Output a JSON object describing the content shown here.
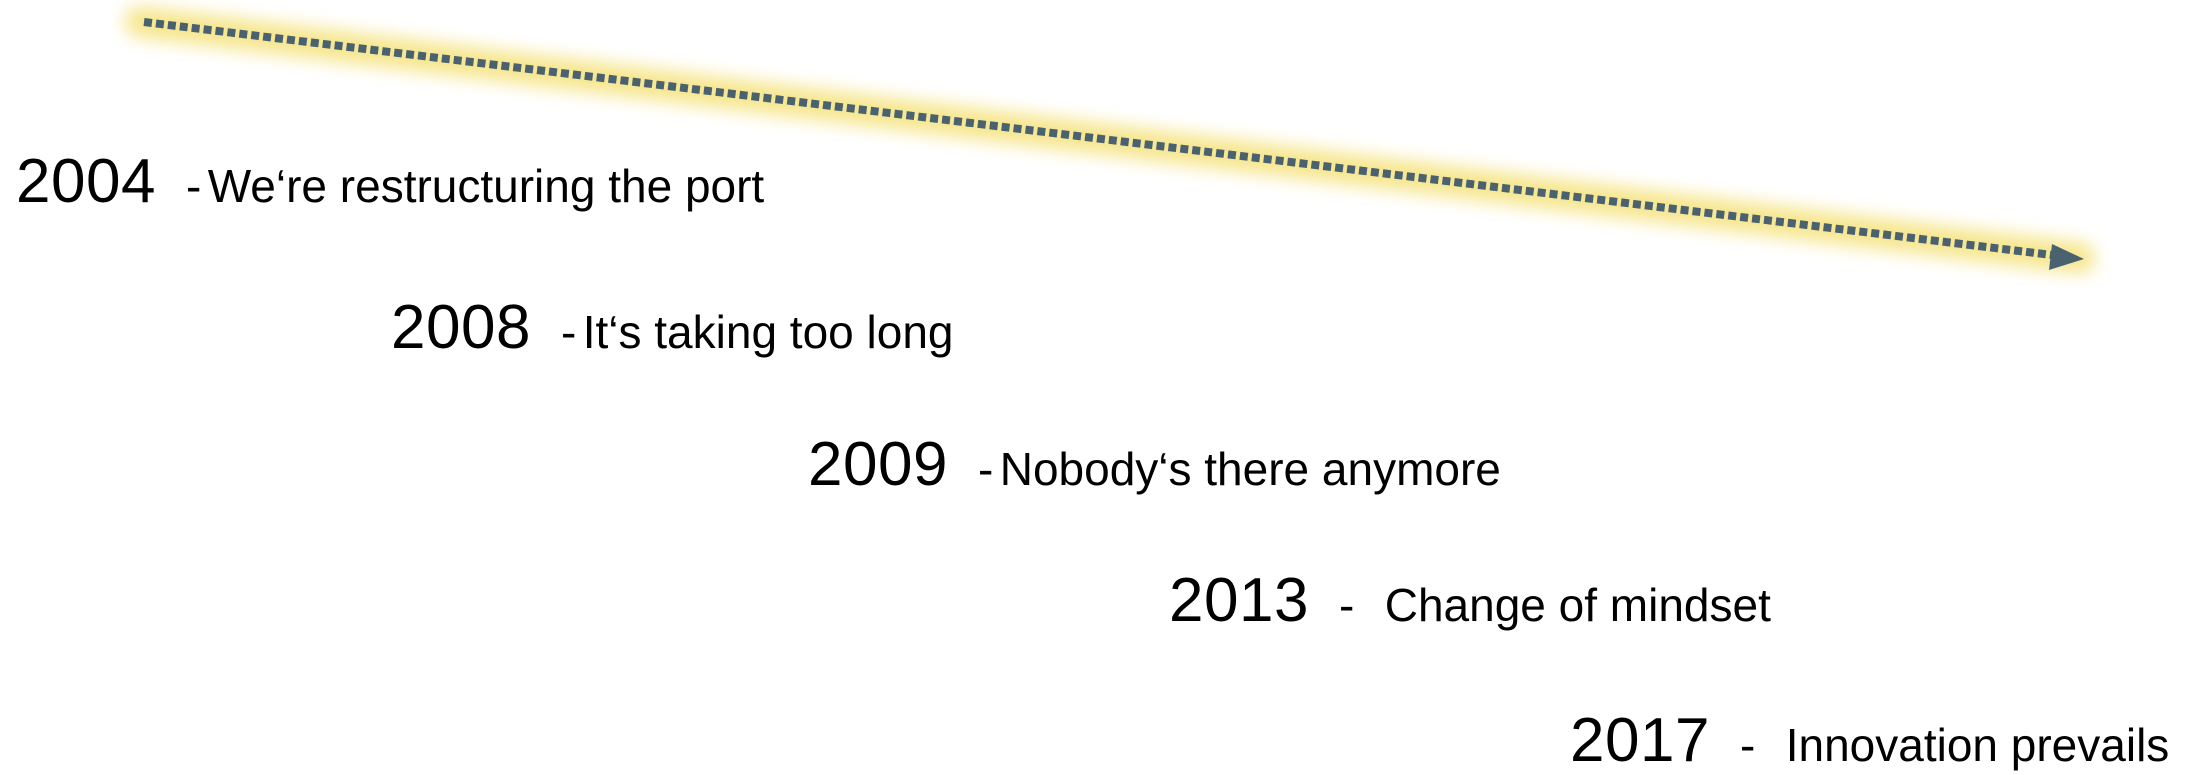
{
  "colors": {
    "arrow": "#4a6270",
    "glow": "#f5e27a",
    "text": "#000000",
    "background": "#ffffff"
  },
  "timeline": [
    {
      "year": "2004",
      "separator": "-",
      "text": "We‘re restructuring the port"
    },
    {
      "year": "2008",
      "separator": "-",
      "text": "It‘s taking too long"
    },
    {
      "year": "2009",
      "separator": "-",
      "text": "Nobody‘s there anymore"
    },
    {
      "year": "2013",
      "separator": "-",
      "text": "Change of mindset"
    },
    {
      "year": "2017",
      "separator": "-",
      "text": "Innovation prevails"
    }
  ]
}
